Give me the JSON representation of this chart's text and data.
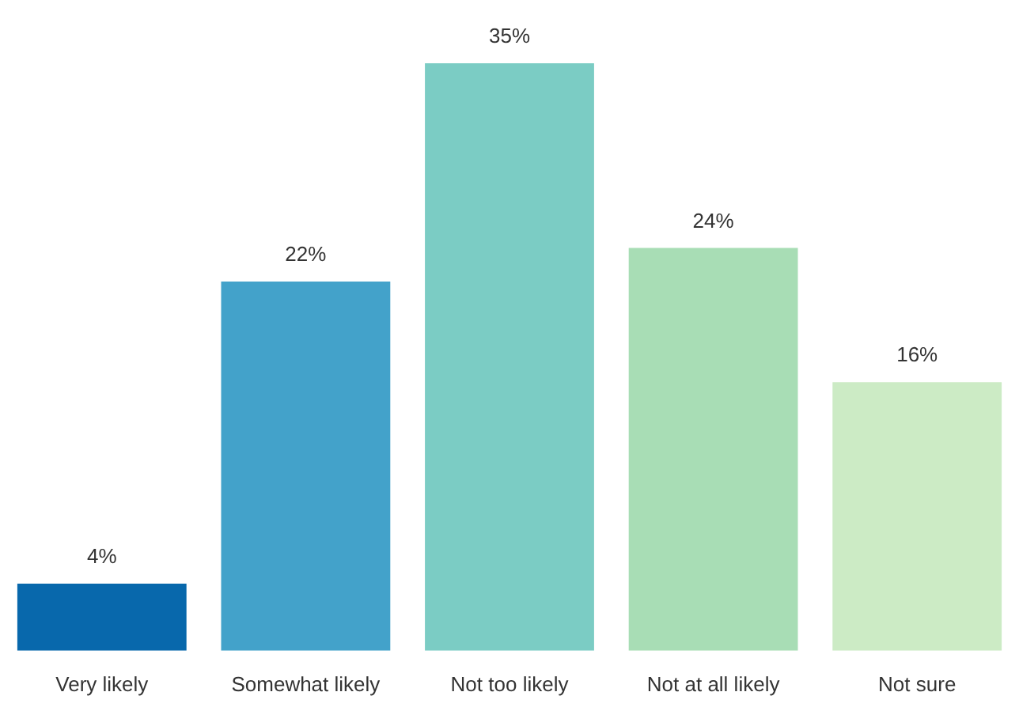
{
  "chart_data": {
    "type": "bar",
    "categories": [
      "Very likely",
      "Somewhat likely",
      "Not too likely",
      "Not at all likely",
      "Not sure"
    ],
    "values": [
      4,
      22,
      35,
      24,
      16
    ],
    "value_labels": [
      "4%",
      "22%",
      "35%",
      "24%",
      "16%"
    ],
    "colors": [
      "#0868ac",
      "#43a2ca",
      "#7bccc4",
      "#a8ddb5",
      "#ccebc5"
    ],
    "grid": false,
    "legend": false
  }
}
